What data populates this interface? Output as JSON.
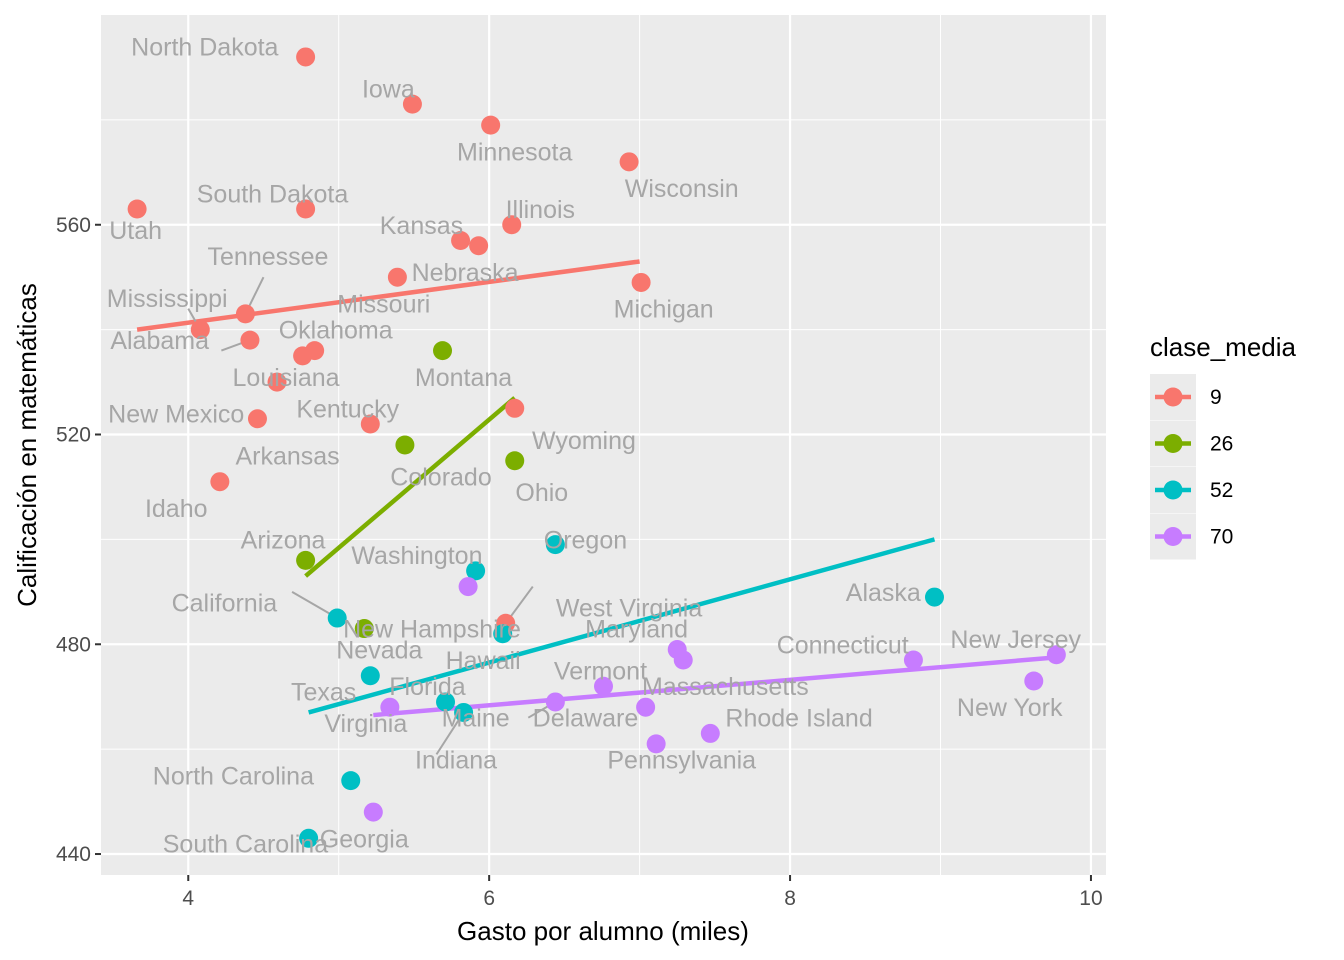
{
  "chart_data": {
    "type": "scatter",
    "title": "",
    "xlabel": "Gasto por alumno (miles)",
    "ylabel": "Calificación en matemáticas",
    "xlim": [
      3.42,
      10.1
    ],
    "ylim": [
      436,
      600
    ],
    "xticks": [
      4,
      6,
      8,
      10
    ],
    "yticks": [
      440,
      480,
      520,
      560
    ],
    "grid": true,
    "legend": {
      "title": "clase_media",
      "position": "right",
      "entries": [
        {
          "label": "9",
          "color": "#F8766D"
        },
        {
          "label": "26",
          "color": "#7CAE00"
        },
        {
          "label": "52",
          "color": "#00BFC4"
        },
        {
          "label": "70",
          "color": "#C77CFF"
        }
      ]
    },
    "series": [
      {
        "name": "9",
        "color": "#F8766D",
        "points": [
          {
            "label": "North Dakota",
            "x": 4.78,
            "y": 592
          },
          {
            "label": "Iowa",
            "x": 5.49,
            "y": 583
          },
          {
            "label": "Minnesota",
            "x": 6.01,
            "y": 579
          },
          {
            "label": "Wisconsin",
            "x": 6.93,
            "y": 572
          },
          {
            "label": "Utah",
            "x": 3.66,
            "y": 563
          },
          {
            "label": "South Dakota",
            "x": 4.78,
            "y": 563
          },
          {
            "label": "Illinois",
            "x": 6.15,
            "y": 560
          },
          {
            "label": "Kansas",
            "x": 5.81,
            "y": 557
          },
          {
            "label": "Nebraska",
            "x": 5.93,
            "y": 556
          },
          {
            "label": "Missouri",
            "x": 5.39,
            "y": 550
          },
          {
            "label": "Michigan",
            "x": 7.01,
            "y": 549
          },
          {
            "label": "Tennessee",
            "x": 4.38,
            "y": 543
          },
          {
            "label": "Mississippi",
            "x": 4.08,
            "y": 540
          },
          {
            "label": "Alabama",
            "x": 4.41,
            "y": 538
          },
          {
            "label": "Oklahoma",
            "x": 4.84,
            "y": 536
          },
          {
            "label": "Louisiana",
            "x": 4.76,
            "y": 535
          },
          {
            "label": "Kentucky",
            "x": 4.59,
            "y": 530
          },
          {
            "label": "Wyoming",
            "x": 6.17,
            "y": 525
          },
          {
            "label": "New Mexico",
            "x": 4.46,
            "y": 523
          },
          {
            "label": "Arkansas",
            "x": 5.21,
            "y": 522
          },
          {
            "label": "Idaho",
            "x": 4.21,
            "y": 511
          },
          {
            "label": "West Virginia",
            "x": 6.11,
            "y": 484
          }
        ],
        "fit": {
          "x": [
            3.66,
            7.0
          ],
          "y": [
            540,
            553
          ]
        }
      },
      {
        "name": "26",
        "color": "#7CAE00",
        "points": [
          {
            "label": "Montana",
            "x": 5.69,
            "y": 536
          },
          {
            "label": "Colorado",
            "x": 5.44,
            "y": 518
          },
          {
            "label": "Ohio",
            "x": 6.17,
            "y": 515
          },
          {
            "label": "Arizona",
            "x": 4.78,
            "y": 496
          },
          {
            "label": "New Hampshire",
            "x": 5.17,
            "y": 483
          }
        ],
        "fit": {
          "x": [
            4.78,
            6.17
          ],
          "y": [
            493,
            527
          ]
        }
      },
      {
        "name": "52",
        "color": "#00BFC4",
        "points": [
          {
            "label": "Oregon",
            "x": 6.44,
            "y": 499
          },
          {
            "label": "Washington",
            "x": 5.91,
            "y": 494
          },
          {
            "label": "Alaska",
            "x": 8.96,
            "y": 489
          },
          {
            "label": "California",
            "x": 4.99,
            "y": 485
          },
          {
            "label": "Hawaii",
            "x": 6.09,
            "y": 482
          },
          {
            "label": "Nevada",
            "x": 5.21,
            "y": 474
          },
          {
            "label": "Florida",
            "x": 5.71,
            "y": 469
          },
          {
            "label": "Maine",
            "x": 5.83,
            "y": 467
          },
          {
            "label": "North Carolina",
            "x": 5.08,
            "y": 454
          },
          {
            "label": "South Carolina",
            "x": 4.8,
            "y": 443
          }
        ],
        "fit": {
          "x": [
            4.8,
            8.96
          ],
          "y": [
            467,
            500
          ]
        }
      },
      {
        "name": "70",
        "color": "#C77CFF",
        "points": [
          {
            "label": "Washington",
            "x": 5.86,
            "y": 491
          },
          {
            "label": "Maryland",
            "x": 7.25,
            "y": 479
          },
          {
            "label": "Connecticut",
            "x": 8.82,
            "y": 477
          },
          {
            "label": "New Jersey",
            "x": 9.77,
            "y": 478
          },
          {
            "label": "Massachusetts",
            "x": 7.29,
            "y": 477
          },
          {
            "label": "New York",
            "x": 9.62,
            "y": 473
          },
          {
            "label": "Vermont",
            "x": 6.76,
            "y": 472
          },
          {
            "label": "Delaware",
            "x": 6.44,
            "y": 469
          },
          {
            "label": "Virginia",
            "x": 5.34,
            "y": 468
          },
          {
            "label": "Indiana",
            "x": 7.04,
            "y": 468
          },
          {
            "label": "Rhode Island",
            "x": 7.47,
            "y": 463
          },
          {
            "label": "Pennsylvania",
            "x": 7.11,
            "y": 461
          },
          {
            "label": "Georgia",
            "x": 5.23,
            "y": 448
          }
        ],
        "fit": {
          "x": [
            5.23,
            9.77
          ],
          "y": [
            466.5,
            477.5
          ]
        }
      }
    ],
    "labels": [
      {
        "text": "North Dakota",
        "x": 4.11,
        "y": 594
      },
      {
        "text": "Iowa",
        "x": 5.33,
        "y": 586
      },
      {
        "text": "Minnesota",
        "x": 6.17,
        "y": 574
      },
      {
        "text": "Wisconsin",
        "x": 7.28,
        "y": 567
      },
      {
        "text": "Utah",
        "x": 3.65,
        "y": 559
      },
      {
        "text": "South Dakota",
        "x": 4.56,
        "y": 566
      },
      {
        "text": "Illinois",
        "x": 6.34,
        "y": 563
      },
      {
        "text": "Kansas",
        "x": 5.55,
        "y": 560
      },
      {
        "text": "Nebraska",
        "x": 5.84,
        "y": 551
      },
      {
        "text": "Missouri",
        "x": 5.3,
        "y": 545
      },
      {
        "text": "Michigan",
        "x": 7.16,
        "y": 544
      },
      {
        "text": "Tennessee",
        "x": 4.53,
        "y": 554
      },
      {
        "text": "Mississippi",
        "x": 3.86,
        "y": 546
      },
      {
        "text": "Alabama",
        "x": 3.81,
        "y": 538
      },
      {
        "text": "Oklahoma",
        "x": 4.98,
        "y": 540
      },
      {
        "text": "Louisiana",
        "x": 4.65,
        "y": 531
      },
      {
        "text": "Kentucky",
        "x": 5.06,
        "y": 525
      },
      {
        "text": "Wyoming",
        "x": 6.63,
        "y": 519
      },
      {
        "text": "New Mexico",
        "x": 3.92,
        "y": 524
      },
      {
        "text": "Arkansas",
        "x": 4.66,
        "y": 516
      },
      {
        "text": "Idaho",
        "x": 3.92,
        "y": 506
      },
      {
        "text": "West Virginia",
        "x": 6.93,
        "y": 487
      },
      {
        "text": "Montana",
        "x": 5.83,
        "y": 531
      },
      {
        "text": "Colorado",
        "x": 5.68,
        "y": 512
      },
      {
        "text": "Ohio",
        "x": 6.35,
        "y": 509
      },
      {
        "text": "Arizona",
        "x": 4.63,
        "y": 500
      },
      {
        "text": "New Hampshire",
        "x": 5.62,
        "y": 483
      },
      {
        "text": "Oregon",
        "x": 6.64,
        "y": 500
      },
      {
        "text": "Washington",
        "x": 5.52,
        "y": 497
      },
      {
        "text": "Alaska",
        "x": 8.62,
        "y": 490
      },
      {
        "text": "California",
        "x": 4.24,
        "y": 488
      },
      {
        "text": "Hawaii",
        "x": 5.96,
        "y": 477
      },
      {
        "text": "Nevada",
        "x": 5.27,
        "y": 479
      },
      {
        "text": "Florida",
        "x": 5.59,
        "y": 472
      },
      {
        "text": "Maine",
        "x": 5.91,
        "y": 466
      },
      {
        "text": "North Carolina",
        "x": 4.3,
        "y": 455
      },
      {
        "text": "South Carolina",
        "x": 4.38,
        "y": 442
      },
      {
        "text": "Maryland",
        "x": 6.98,
        "y": 483
      },
      {
        "text": "Connecticut",
        "x": 8.35,
        "y": 480
      },
      {
        "text": "New Jersey",
        "x": 9.5,
        "y": 481
      },
      {
        "text": "Massachusetts",
        "x": 7.57,
        "y": 472
      },
      {
        "text": "New York",
        "x": 9.46,
        "y": 468
      },
      {
        "text": "Vermont",
        "x": 6.74,
        "y": 475
      },
      {
        "text": "Delaware",
        "x": 6.64,
        "y": 466
      },
      {
        "text": "Virginia",
        "x": 5.18,
        "y": 465
      },
      {
        "text": "Indiana",
        "x": 5.78,
        "y": 458
      },
      {
        "text": "Rhode Island",
        "x": 8.06,
        "y": 466
      },
      {
        "text": "Pennsylvania",
        "x": 7.28,
        "y": 458
      },
      {
        "text": "Georgia",
        "x": 5.17,
        "y": 443
      },
      {
        "text": "Texas",
        "x": 4.9,
        "y": 471
      }
    ],
    "connectors": [
      {
        "x1": 4.38,
        "y1": 543,
        "x2": 4.5,
        "y2": 550
      },
      {
        "x1": 4.08,
        "y1": 540,
        "x2": 4.0,
        "y2": 544
      },
      {
        "x1": 4.41,
        "y1": 538,
        "x2": 4.22,
        "y2": 536
      },
      {
        "x1": 4.99,
        "y1": 485,
        "x2": 4.69,
        "y2": 490
      },
      {
        "x1": 6.11,
        "y1": 484,
        "x2": 6.29,
        "y2": 491
      },
      {
        "x1": 6.44,
        "y1": 469,
        "x2": 6.26,
        "y2": 466
      },
      {
        "x1": 5.83,
        "y1": 467,
        "x2": 5.65,
        "y2": 459
      }
    ]
  }
}
